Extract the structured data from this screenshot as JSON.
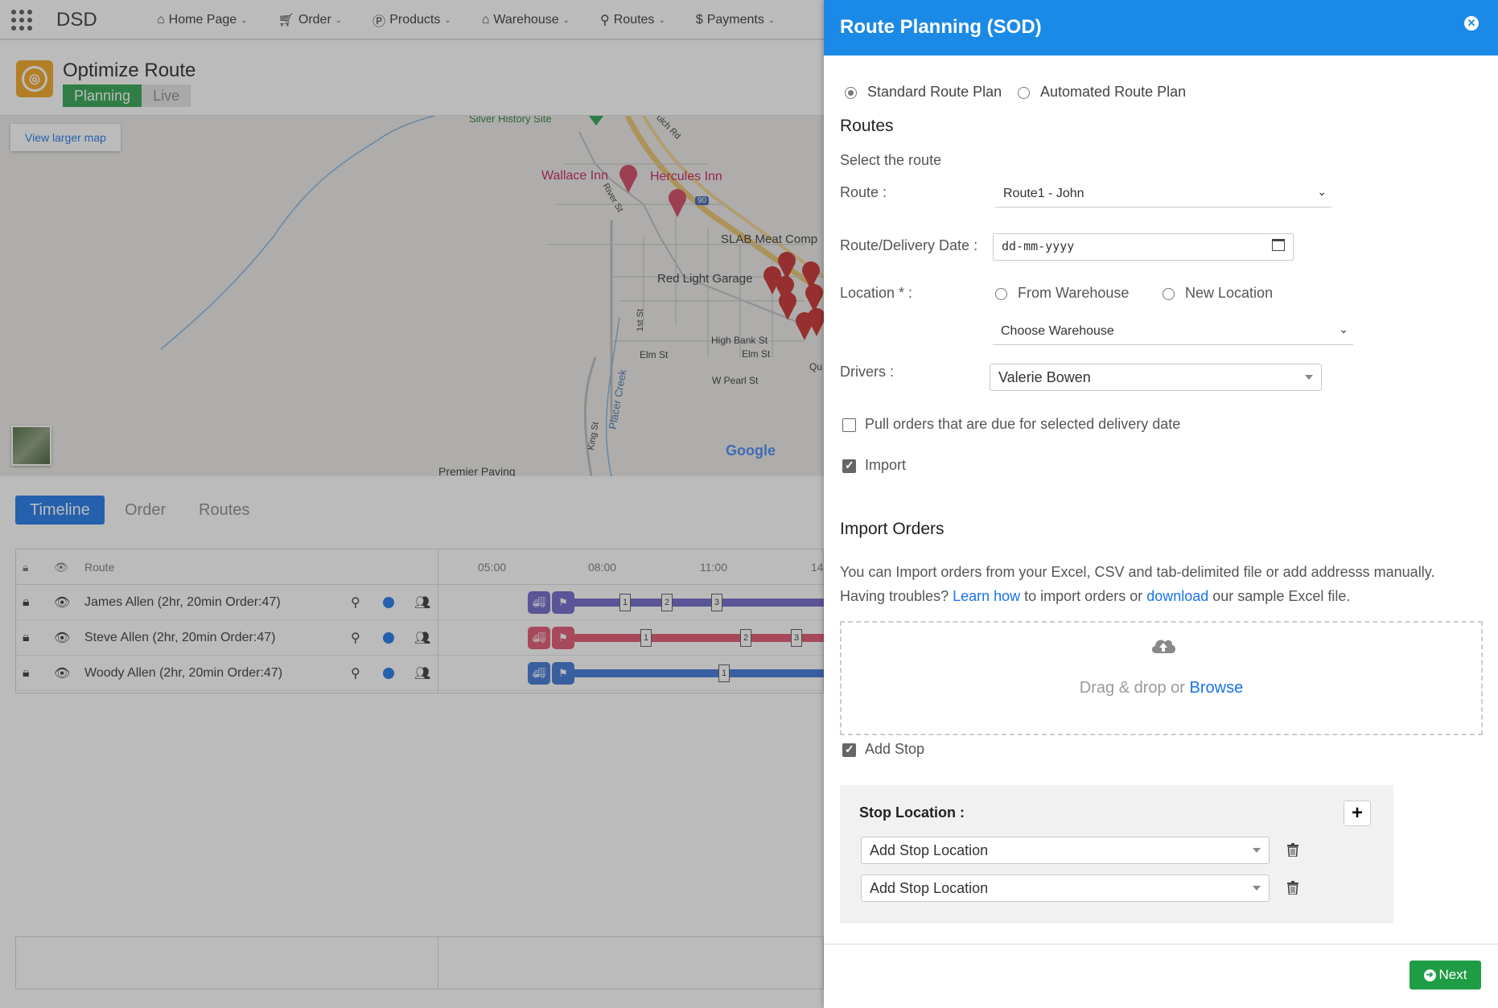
{
  "app": {
    "brand": "DSD"
  },
  "nav": [
    {
      "label": "Home Page",
      "icon": "home-icon"
    },
    {
      "label": "Order",
      "icon": "cart-icon"
    },
    {
      "label": "Products",
      "icon": "product-icon"
    },
    {
      "label": "Warehouse",
      "icon": "warehouse-icon"
    },
    {
      "label": "Routes",
      "icon": "map-marker-icon"
    },
    {
      "label": "Payments",
      "icon": "dollar-icon"
    }
  ],
  "header": {
    "title": "Optimize Route",
    "mode_on": "Planning",
    "mode_off": "Live"
  },
  "map": {
    "view_larger": "View larger map",
    "labels": [
      "Silver History Site",
      "Wallace Inn",
      "Hercules Inn",
      "SLAB Meat Comp",
      "Red Light Garage",
      "River St",
      "1st St",
      "Elm St",
      "High Bank St",
      "Elm St",
      "W Pearl St",
      "Placer Creek",
      "King St",
      "Premier Paving",
      "Qu",
      "ulch Rd",
      "90"
    ],
    "attribution": "Google"
  },
  "timeline": {
    "tabs": [
      "Timeline",
      "Order",
      "Routes"
    ],
    "columns": {
      "route": "Route"
    },
    "times": [
      "05:00",
      "08:00",
      "11:00",
      "14"
    ],
    "rows": [
      {
        "name": "James Allen (2hr, 20min Order:47)",
        "color": "#6a62c9",
        "stops": [
          "1",
          "2",
          "3"
        ]
      },
      {
        "name": "Steve Allen (2hr, 20min Order:47)",
        "color": "#e0506a",
        "stops": [
          "1",
          "2",
          "3"
        ]
      },
      {
        "name": "Woody Allen (2hr, 20min Order:47)",
        "color": "#3a72d6",
        "stops": [
          "1"
        ]
      }
    ]
  },
  "drawer": {
    "title": "Route Planning (SOD)",
    "plan_options": [
      "Standard Route Plan",
      "Automated Route Plan"
    ],
    "routes_title": "Routes",
    "select_route_hint": "Select the route",
    "route_label": "Route :",
    "route_value": "Route1 - John",
    "date_label": "Route/Delivery Date :",
    "date_placeholder": "dd-mm-yyyy",
    "location_label": "Location * :",
    "location_options": [
      "From Warehouse",
      "New Location"
    ],
    "warehouse_select": "Choose Warehouse",
    "drivers_label": "Drivers :",
    "driver_value": "Valerie Bowen",
    "pull_orders": "Pull orders that are due for selected delivery date",
    "import_label": "Import",
    "import_title": "Import Orders",
    "import_text_1": "You can Import orders from your Excel, CSV and tab-delimited file or add addresss manually. Having troubles? ",
    "learn_how": "Learn how",
    "import_text_2": " to import orders or ",
    "download": "download",
    "import_text_3": " our sample Excel file.",
    "drop_text": "Drag & drop or ",
    "browse": "Browse",
    "add_stop": "Add Stop",
    "stop_location_title": "Stop Location :",
    "stop_placeholder_1": "Add Stop Location",
    "stop_placeholder_2": "Add Stop Location",
    "next": "Next"
  },
  "colors": {
    "accent": "#1b8ae6",
    "success": "#1f9d45",
    "planning": "#2aa04a"
  }
}
